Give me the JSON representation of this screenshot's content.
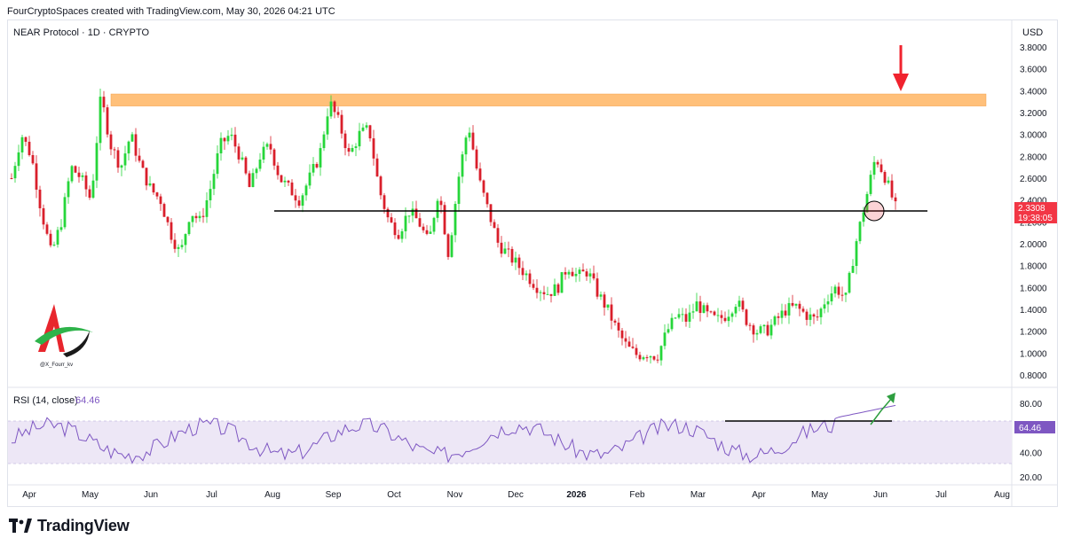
{
  "header": {
    "attribution": "FourCryptoSpaces created with TradingView.com, May 30, 2026 04:21 UTC"
  },
  "footer": {
    "brand": "TradingView",
    "logo_icon": "tradingview-logo-icon"
  },
  "watermark": {
    "handle": "@X_Fourr_kv",
    "icon": "a-letter-logo-icon"
  },
  "colors": {
    "up": "#26d63a",
    "down": "#d91f2b",
    "resistance_zone": "#ffc07a",
    "support_line": "#000000",
    "rsi_line": "#7e57c2",
    "rsi_band": "#ede7f6",
    "price_label_bg": "#f23645",
    "arrow_red": "#f0232e",
    "arrow_green": "#2e9e3f"
  },
  "chart_data": [
    {
      "type": "candlestick",
      "title": "NEAR Protocol · 1D · CRYPTO",
      "currency": "USD",
      "y_ticks": [
        "3.8000",
        "3.6000",
        "3.4000",
        "3.2000",
        "3.0000",
        "2.8000",
        "2.6000",
        "2.4000",
        "2.2000",
        "2.0000",
        "1.8000",
        "1.6000",
        "1.4000",
        "1.2000",
        "1.0000",
        "0.8000"
      ],
      "ylim": [
        0.8,
        3.8
      ],
      "x_ticks": [
        "Apr",
        "May",
        "Jun",
        "Jul",
        "Aug",
        "Sep",
        "Oct",
        "Nov",
        "Dec",
        "2026",
        "Feb",
        "Mar",
        "Apr",
        "May",
        "Jun",
        "Jul",
        "Aug"
      ],
      "last_price": "2.3308",
      "countdown": "19:38:05",
      "resistance_zone": {
        "from": 3.26,
        "to": 3.37
      },
      "support_level": 2.3,
      "path": [
        [
          "Apr",
          2.6
        ],
        [
          "Apr",
          3.0
        ],
        [
          "Apr",
          2.8
        ],
        [
          "Apr",
          2.3
        ],
        [
          "Apr",
          1.9
        ],
        [
          "Apr",
          2.2
        ],
        [
          "Apr",
          2.7
        ],
        [
          "Apr",
          2.6
        ],
        [
          "Apr",
          2.4
        ],
        [
          "May",
          3.35
        ],
        [
          "May",
          2.9
        ],
        [
          "May",
          2.7
        ],
        [
          "May",
          3.0
        ],
        [
          "May",
          2.7
        ],
        [
          "May",
          2.5
        ],
        [
          "Jun",
          2.4
        ],
        [
          "Jun",
          2.1
        ],
        [
          "Jun",
          1.9
        ],
        [
          "Jun",
          2.3
        ],
        [
          "Jun",
          2.2
        ],
        [
          "Jun",
          2.5
        ],
        [
          "Jun",
          2.9
        ],
        [
          "Jul",
          3.0
        ],
        [
          "Jul",
          2.8
        ],
        [
          "Jul",
          2.5
        ],
        [
          "Jul",
          2.8
        ],
        [
          "Jul",
          2.9
        ],
        [
          "Jul",
          2.6
        ],
        [
          "Jul",
          2.5
        ],
        [
          "Jul",
          2.4
        ],
        [
          "Aug",
          2.6
        ],
        [
          "Aug",
          2.8
        ],
        [
          "Aug",
          3.3
        ],
        [
          "Aug",
          3.1
        ],
        [
          "Aug",
          2.8
        ],
        [
          "Aug",
          3.0
        ],
        [
          "Aug",
          3.05
        ],
        [
          "Aug",
          2.5
        ],
        [
          "Sep",
          2.2
        ],
        [
          "Sep",
          2.1
        ],
        [
          "Sep",
          2.3
        ],
        [
          "Sep",
          2.2
        ],
        [
          "Sep",
          2.0
        ],
        [
          "Sep",
          2.5
        ],
        [
          "Sep",
          1.9
        ],
        [
          "Sep",
          2.6
        ],
        [
          "Sep",
          3.1
        ],
        [
          "Sep",
          2.6
        ],
        [
          "Sep",
          2.3
        ],
        [
          "Dec",
          2.0
        ],
        [
          "Dec",
          1.9
        ],
        [
          "Dec",
          1.8
        ],
        [
          "Dec",
          1.7
        ],
        [
          "Dec",
          1.6
        ],
        [
          "Dec",
          1.55
        ],
        [
          "Dec",
          1.6
        ],
        [
          "Dec",
          1.8
        ],
        [
          "Dec",
          1.7
        ],
        [
          "Dec",
          1.75
        ],
        [
          "Dec",
          1.55
        ],
        [
          "2026",
          1.4
        ],
        [
          "2026",
          1.2
        ],
        [
          "2026",
          1.05
        ],
        [
          "2026",
          0.98
        ],
        [
          "2026",
          1.0
        ],
        [
          "2026",
          0.97
        ],
        [
          "Feb",
          1.2
        ],
        [
          "Feb",
          1.35
        ],
        [
          "Feb",
          1.3
        ],
        [
          "Feb",
          1.45
        ],
        [
          "Feb",
          1.35
        ],
        [
          "Feb",
          1.3
        ],
        [
          "Mar",
          1.35
        ],
        [
          "Mar",
          1.48
        ],
        [
          "Mar",
          1.3
        ],
        [
          "Mar",
          1.2
        ],
        [
          "Mar",
          1.2
        ],
        [
          "Mar",
          1.3
        ],
        [
          "Mar",
          1.4
        ],
        [
          "Mar",
          1.42
        ],
        [
          "Mar",
          1.35
        ],
        [
          "Mar",
          1.3
        ],
        [
          "Mar",
          1.5
        ],
        [
          "Mar",
          1.6
        ],
        [
          "Mar",
          1.5
        ],
        [
          "Apr",
          2.0
        ],
        [
          "Apr",
          2.4
        ],
        [
          "Apr",
          2.8
        ],
        [
          "Apr",
          2.6
        ],
        [
          "Apr",
          2.33
        ]
      ]
    },
    {
      "type": "line",
      "title": "RSI (14, close)",
      "last_value": "64.46",
      "y_ticks": [
        "80.00",
        "60.00",
        "40.00",
        "20.00"
      ],
      "ylim": [
        15,
        90
      ],
      "band": [
        30,
        70
      ],
      "breakout_level": 70
    }
  ]
}
